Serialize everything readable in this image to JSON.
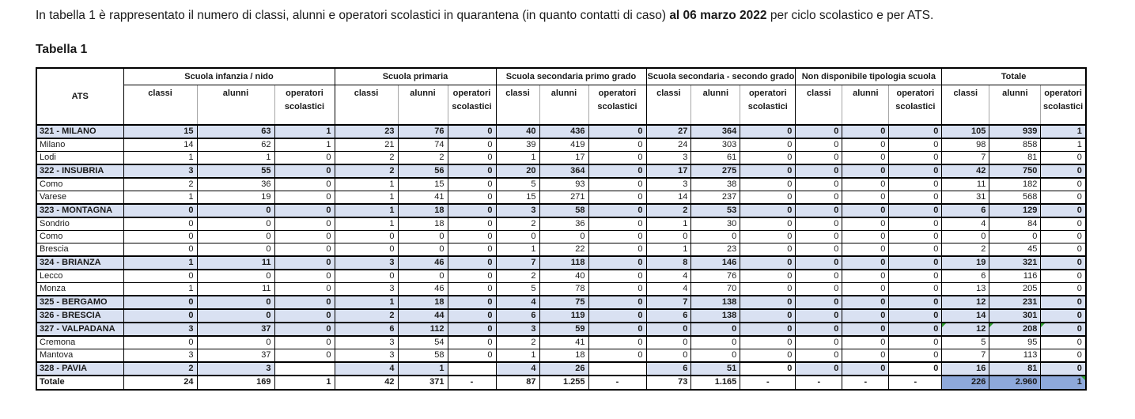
{
  "intro": {
    "before": "In tabella 1 è rappresentato il numero di classi, alunni e operatori scolastici in quarantena (in quanto contatti di caso) ",
    "bold": "al 06 marzo 2022",
    "after": " per ciclo scolastico e per ATS."
  },
  "title": "Tabella 1",
  "colors": {
    "row_highlight": "#D9E1F2",
    "grand_total_fill": "#8EA9DB",
    "marker_green": "#2e9e2e"
  },
  "table": {
    "corner": "ATS",
    "groups": [
      "Scuola infanzia / nido",
      "Scuola primaria",
      "Scuola secondaria primo grado",
      "Scuola secondaria - secondo grado",
      "Non disponibile tipologia scuola",
      "Totale"
    ],
    "subheaders": [
      "classi",
      "alunni",
      "operatori scolastici"
    ],
    "rows": [
      {
        "label": "321 - MILANO",
        "kind": "ats",
        "values": [
          "15",
          "63",
          "1",
          "23",
          "76",
          "0",
          "40",
          "436",
          "0",
          "27",
          "364",
          "0",
          "0",
          "0",
          "0",
          "105",
          "939",
          "1"
        ]
      },
      {
        "label": "Milano",
        "kind": "sub",
        "values": [
          "14",
          "62",
          "1",
          "21",
          "74",
          "0",
          "39",
          "419",
          "0",
          "24",
          "303",
          "0",
          "0",
          "0",
          "0",
          "98",
          "858",
          "1"
        ]
      },
      {
        "label": "Lodi",
        "kind": "sub",
        "values": [
          "1",
          "1",
          "0",
          "2",
          "2",
          "0",
          "1",
          "17",
          "0",
          "3",
          "61",
          "0",
          "0",
          "0",
          "0",
          "7",
          "81",
          "0"
        ]
      },
      {
        "label": "322 - INSUBRIA",
        "kind": "ats",
        "values": [
          "3",
          "55",
          "0",
          "2",
          "56",
          "0",
          "20",
          "364",
          "0",
          "17",
          "275",
          "0",
          "0",
          "0",
          "0",
          "42",
          "750",
          "0"
        ]
      },
      {
        "label": "Como",
        "kind": "sub",
        "values": [
          "2",
          "36",
          "0",
          "1",
          "15",
          "0",
          "5",
          "93",
          "0",
          "3",
          "38",
          "0",
          "0",
          "0",
          "0",
          "11",
          "182",
          "0"
        ]
      },
      {
        "label": "Varese",
        "kind": "sub",
        "values": [
          "1",
          "19",
          "0",
          "1",
          "41",
          "0",
          "15",
          "271",
          "0",
          "14",
          "237",
          "0",
          "0",
          "0",
          "0",
          "31",
          "568",
          "0"
        ]
      },
      {
        "label": "323 - MONTAGNA",
        "kind": "ats",
        "values": [
          "0",
          "0",
          "0",
          "1",
          "18",
          "0",
          "3",
          "58",
          "0",
          "2",
          "53",
          "0",
          "0",
          "0",
          "0",
          "6",
          "129",
          "0"
        ]
      },
      {
        "label": "Sondrio",
        "kind": "sub",
        "values": [
          "0",
          "0",
          "0",
          "1",
          "18",
          "0",
          "2",
          "36",
          "0",
          "1",
          "30",
          "0",
          "0",
          "0",
          "0",
          "4",
          "84",
          "0"
        ]
      },
      {
        "label": "Como",
        "kind": "sub",
        "values": [
          "0",
          "0",
          "0",
          "0",
          "0",
          "0",
          "0",
          "0",
          "0",
          "0",
          "0",
          "0",
          "0",
          "0",
          "0",
          "0",
          "0",
          "0"
        ]
      },
      {
        "label": "Brescia",
        "kind": "sub",
        "values": [
          "0",
          "0",
          "0",
          "0",
          "0",
          "0",
          "1",
          "22",
          "0",
          "1",
          "23",
          "0",
          "0",
          "0",
          "0",
          "2",
          "45",
          "0"
        ]
      },
      {
        "label": "324 - BRIANZA",
        "kind": "ats",
        "values": [
          "1",
          "11",
          "0",
          "3",
          "46",
          "0",
          "7",
          "118",
          "0",
          "8",
          "146",
          "0",
          "0",
          "0",
          "0",
          "19",
          "321",
          "0"
        ]
      },
      {
        "label": "Lecco",
        "kind": "sub",
        "values": [
          "0",
          "0",
          "0",
          "0",
          "0",
          "0",
          "2",
          "40",
          "0",
          "4",
          "76",
          "0",
          "0",
          "0",
          "0",
          "6",
          "116",
          "0"
        ]
      },
      {
        "label": "Monza",
        "kind": "sub",
        "values": [
          "1",
          "11",
          "0",
          "3",
          "46",
          "0",
          "5",
          "78",
          "0",
          "4",
          "70",
          "0",
          "0",
          "0",
          "0",
          "13",
          "205",
          "0"
        ]
      },
      {
        "label": "325 - BERGAMO",
        "kind": "ats",
        "values": [
          "0",
          "0",
          "0",
          "1",
          "18",
          "0",
          "4",
          "75",
          "0",
          "7",
          "138",
          "0",
          "0",
          "0",
          "0",
          "12",
          "231",
          "0"
        ]
      },
      {
        "label": "326 - BRESCIA",
        "kind": "ats",
        "values": [
          "0",
          "0",
          "0",
          "2",
          "44",
          "0",
          "6",
          "119",
          "0",
          "6",
          "138",
          "0",
          "0",
          "0",
          "0",
          "14",
          "301",
          "0"
        ]
      },
      {
        "label": "327 - VALPADANA",
        "kind": "ats",
        "values": [
          "3",
          "37",
          "0",
          "6",
          "112",
          "0",
          "3",
          "59",
          "0",
          "0",
          "0",
          "0",
          "0",
          "0",
          "0",
          "12",
          "208",
          "0"
        ],
        "corner_markers": [
          {
            "col": 15,
            "side": "left"
          },
          {
            "col": 16,
            "side": "left"
          },
          {
            "col": 17,
            "side": "left"
          }
        ]
      },
      {
        "label": "Cremona",
        "kind": "sub",
        "values": [
          "0",
          "0",
          "0",
          "3",
          "54",
          "0",
          "2",
          "41",
          "0",
          "0",
          "0",
          "0",
          "0",
          "0",
          "0",
          "5",
          "95",
          "0"
        ]
      },
      {
        "label": "Mantova",
        "kind": "sub",
        "values": [
          "3",
          "37",
          "0",
          "3",
          "58",
          "0",
          "1",
          "18",
          "0",
          "0",
          "0",
          "0",
          "0",
          "0",
          "0",
          "7",
          "113",
          "0"
        ]
      },
      {
        "label": "328 - PAVIA",
        "kind": "ats",
        "values": [
          "2",
          "3",
          "",
          "4",
          "1",
          "",
          "4",
          "26",
          "",
          "6",
          "51",
          "0",
          "0",
          "0",
          "0",
          "16",
          "81",
          "0"
        ],
        "white_cells": [
          2,
          5,
          8,
          11,
          14
        ]
      },
      {
        "label": "Totale",
        "kind": "total",
        "values": [
          "24",
          "169",
          "1",
          "42",
          "371",
          "-",
          "87",
          "1.255",
          "-",
          "73",
          "1.165",
          "-",
          "-",
          "-",
          "-",
          "226",
          "2.960",
          "1"
        ],
        "corner_markers": [
          {
            "col": 17,
            "side": "right"
          }
        ]
      }
    ]
  }
}
